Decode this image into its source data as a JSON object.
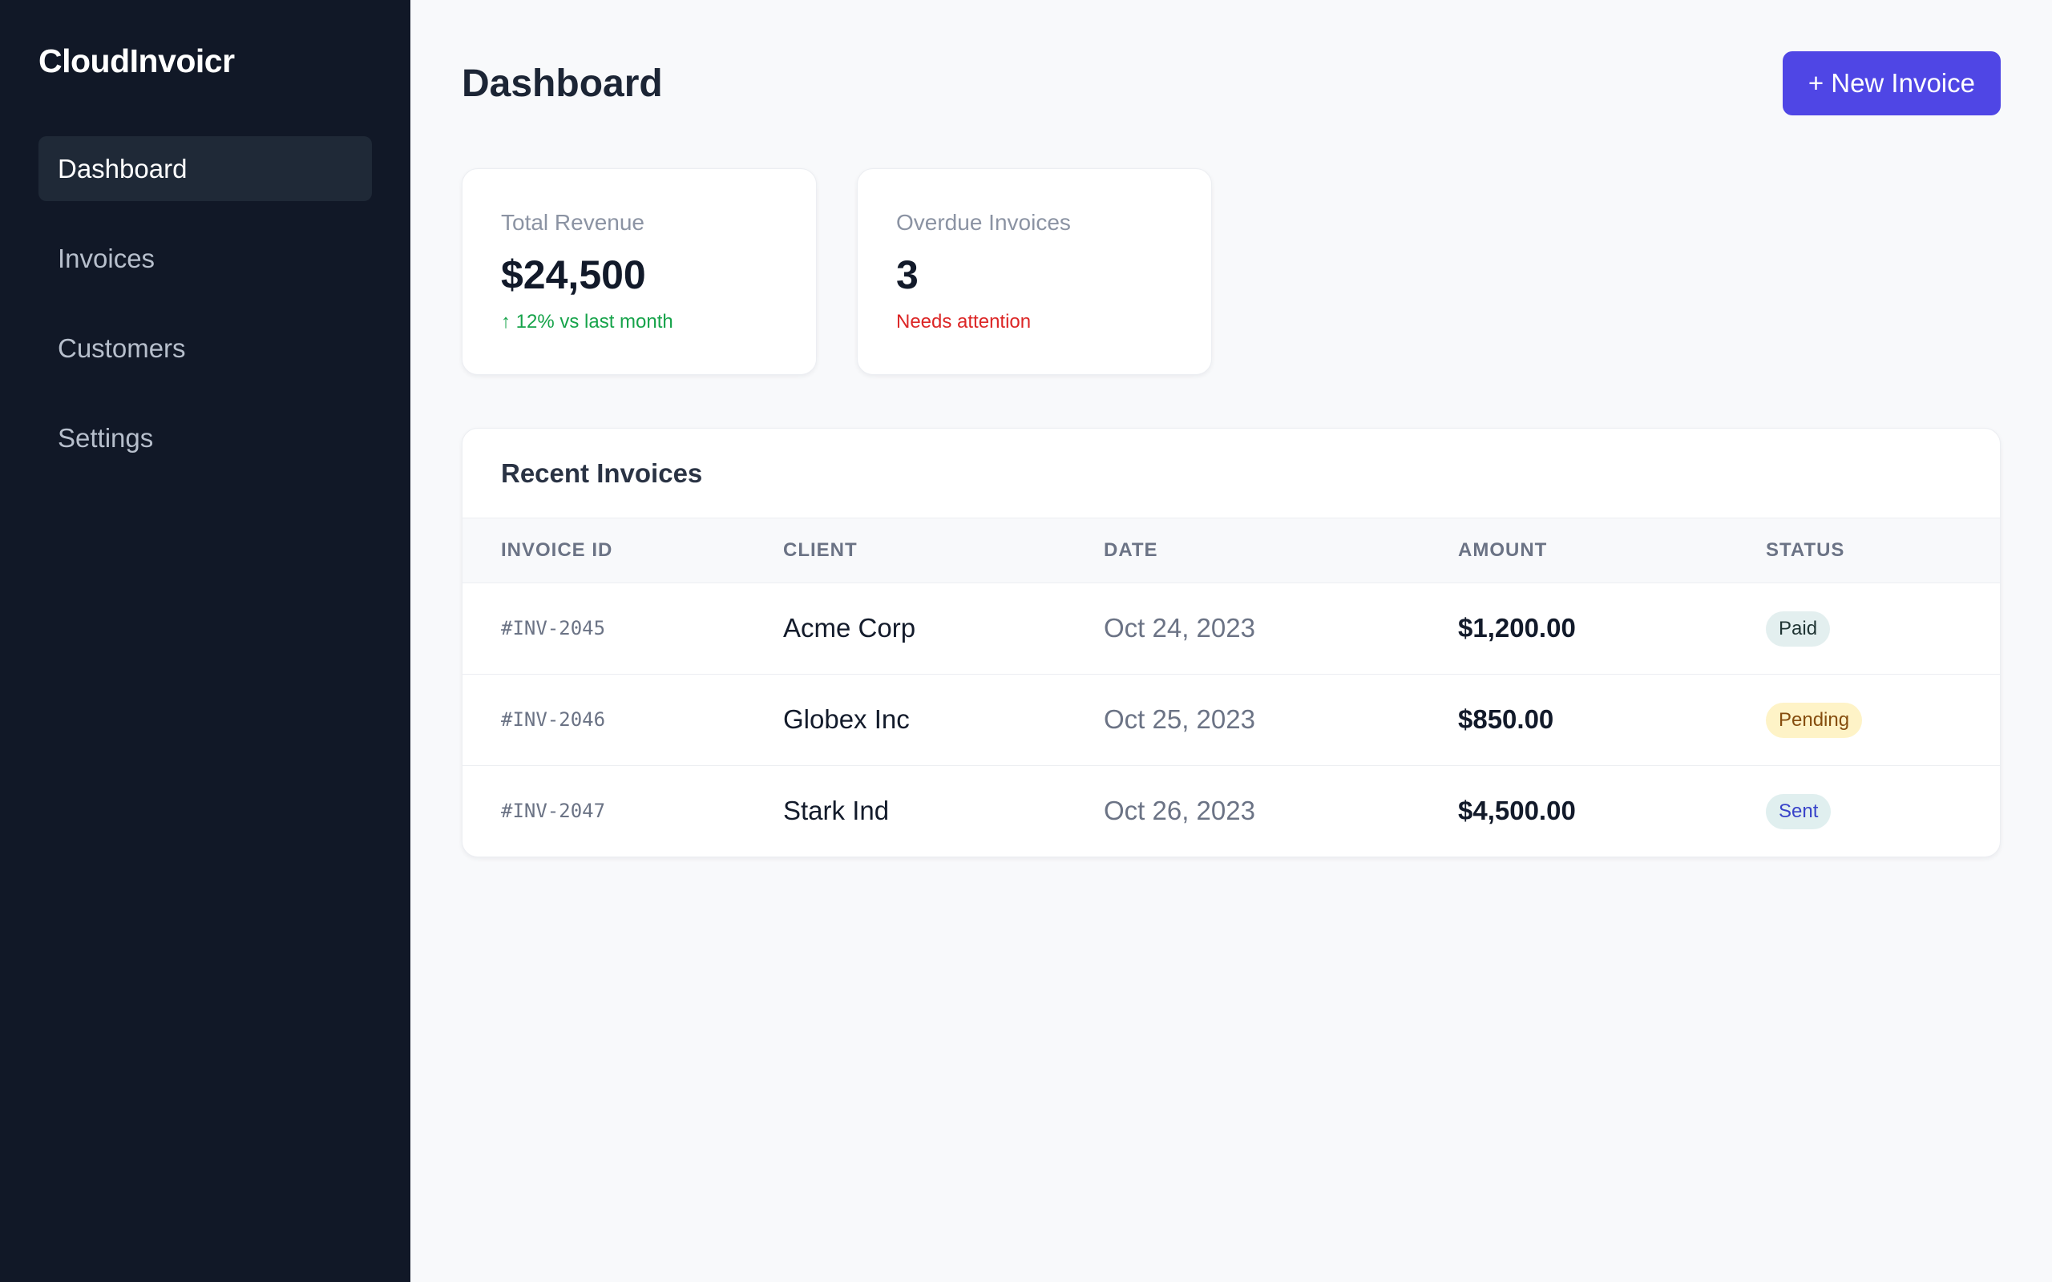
{
  "app": {
    "brand": "CloudInvoicr"
  },
  "sidebar": {
    "items": [
      {
        "label": "Dashboard",
        "active": true
      },
      {
        "label": "Invoices",
        "active": false
      },
      {
        "label": "Customers",
        "active": false
      },
      {
        "label": "Settings",
        "active": false
      }
    ]
  },
  "header": {
    "title": "Dashboard",
    "new_invoice_label": "+ New Invoice"
  },
  "stats": {
    "revenue": {
      "label": "Total Revenue",
      "value": "$24,500",
      "note": "↑ 12% vs last month"
    },
    "overdue": {
      "label": "Overdue Invoices",
      "value": "3",
      "note": "Needs attention"
    }
  },
  "recent": {
    "title": "Recent Invoices",
    "columns": [
      "INVOICE ID",
      "CLIENT",
      "DATE",
      "AMOUNT",
      "STATUS"
    ],
    "rows": [
      {
        "id": "#INV-2045",
        "client": "Acme Corp",
        "date": "Oct 24, 2023",
        "amount": "$1,200.00",
        "status": "Paid"
      },
      {
        "id": "#INV-2046",
        "client": "Globex Inc",
        "date": "Oct 25, 2023",
        "amount": "$850.00",
        "status": "Pending"
      },
      {
        "id": "#INV-2047",
        "client": "Stark Ind",
        "date": "Oct 26, 2023",
        "amount": "$4,500.00",
        "status": "Sent"
      }
    ]
  },
  "colors": {
    "sidebar_bg": "#111827",
    "accent": "#4f46e5",
    "positive": "#16a34a",
    "negative": "#dc2626"
  }
}
